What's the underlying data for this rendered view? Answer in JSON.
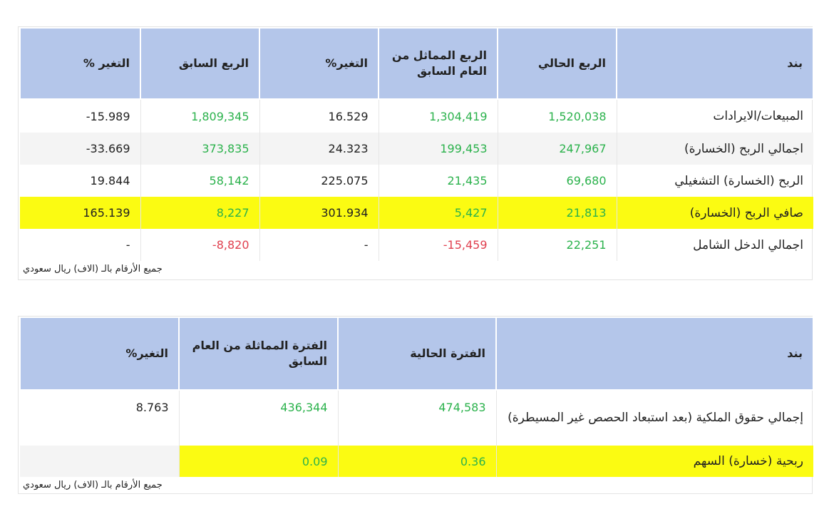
{
  "quarterly": {
    "headers": [
      "بند",
      "الربع الحالي",
      "الربع المماثل من العام السابق",
      "التغير%",
      "الربع السابق",
      "التغير %"
    ],
    "rows": [
      {
        "item": "المبيعات/الايرادات",
        "current": "1,520,038",
        "same_last_year": "1,304,419",
        "change_yoy": "16.529",
        "previous": "1,809,345",
        "change_qoq": "15.989-"
      },
      {
        "item": "اجمالي الربح (الخسارة)",
        "current": "247,967",
        "same_last_year": "199,453",
        "change_yoy": "24.323",
        "previous": "373,835",
        "change_qoq": "33.669-"
      },
      {
        "item": "الربح (الخسارة) التشغيلي",
        "current": "69,680",
        "same_last_year": "21,435",
        "change_yoy": "225.075",
        "previous": "58,142",
        "change_qoq": "19.844"
      },
      {
        "item": "صافي الربح (الخسارة)",
        "current": "21,813",
        "same_last_year": "5,427",
        "change_yoy": "301.934",
        "previous": "8,227",
        "change_qoq": "165.139"
      },
      {
        "item": "اجمالي الدخل الشامل",
        "current": "22,251",
        "same_last_year": "15,459-",
        "change_yoy": "-",
        "previous": "8,820-",
        "change_qoq": "-"
      }
    ],
    "note": "جميع الأرقام بالـ (الاف) ريال سعودي"
  },
  "period": {
    "headers": [
      "بند",
      "الفترة الحالية",
      "الفترة المماثلة من العام السابق",
      "التغير%"
    ],
    "rows": [
      {
        "item": "إجمالي حقوق الملكية (بعد استبعاد الحصص غير المسيطرة)",
        "current": "474,583",
        "same_last_year": "436,344",
        "change": "8.763"
      },
      {
        "item": "ربحية (خسارة) السهم",
        "current": "0.36",
        "same_last_year": "0.09",
        "change": ""
      }
    ],
    "note": "جميع الأرقام بالـ (الاف) ريال سعودي"
  },
  "colors": {
    "header_bg": "#b4c6ea",
    "highlight": "#fbfb12",
    "positive": "#2bb24c",
    "negative": "#e0404f"
  }
}
